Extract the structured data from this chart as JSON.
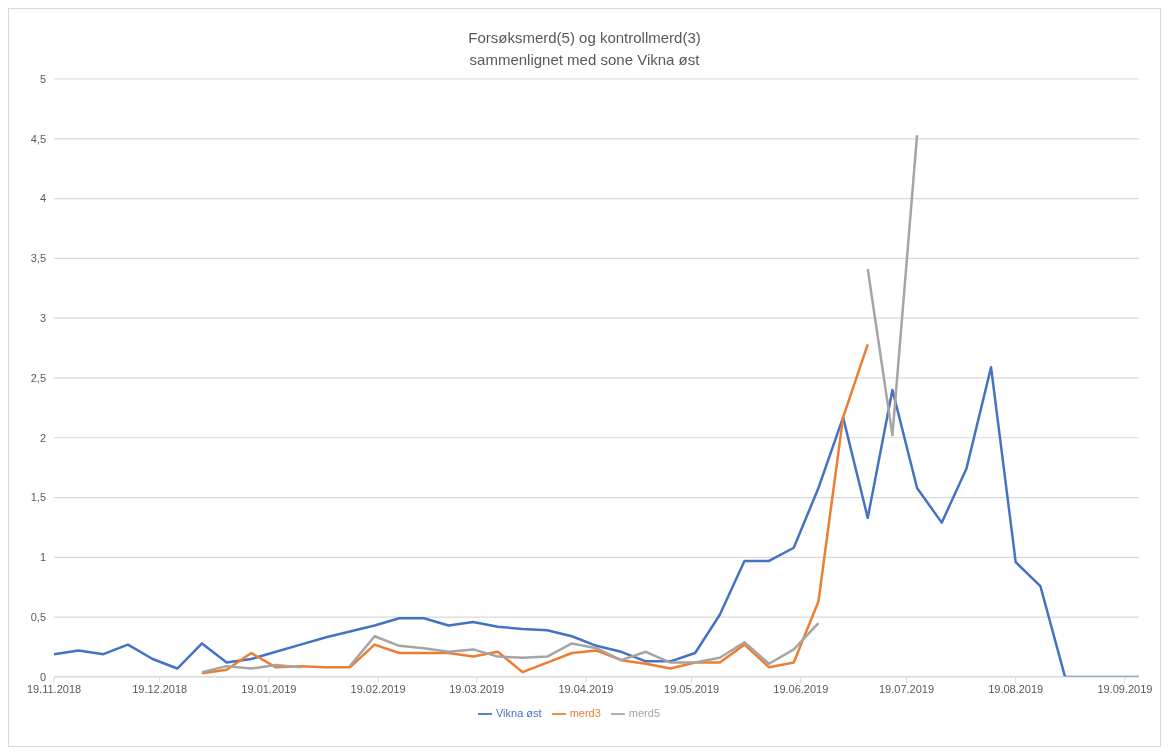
{
  "chart_data": {
    "type": "line",
    "title": "Forsøksmerd(5) og kontrollmerd(3)",
    "subtitle": "sammenlignet med sone Vikna øst",
    "x": [
      "2018-11-19",
      "2018-11-26",
      "2018-12-03",
      "2018-12-10",
      "2018-12-17",
      "2018-12-24",
      "2018-12-31",
      "2019-01-07",
      "2019-01-14",
      "2019-01-21",
      "2019-01-28",
      "2019-02-04",
      "2019-02-11",
      "2019-02-18",
      "2019-02-25",
      "2019-03-04",
      "2019-03-11",
      "2019-03-18",
      "2019-03-25",
      "2019-04-01",
      "2019-04-08",
      "2019-04-15",
      "2019-04-22",
      "2019-04-29",
      "2019-05-06",
      "2019-05-13",
      "2019-05-20",
      "2019-05-27",
      "2019-06-03",
      "2019-06-10",
      "2019-06-17",
      "2019-06-24",
      "2019-07-01",
      "2019-07-08",
      "2019-07-15",
      "2019-07-22",
      "2019-07-29",
      "2019-08-05",
      "2019-08-12",
      "2019-08-19",
      "2019-08-26",
      "2019-09-02",
      "2019-09-09",
      "2019-09-16",
      "2019-09-23"
    ],
    "series": [
      {
        "name": "Vikna øst",
        "color": "#4472c4",
        "values": [
          0.19,
          0.22,
          0.19,
          0.27,
          0.15,
          0.07,
          0.28,
          0.12,
          0.15,
          0.21,
          0.27,
          0.33,
          0.38,
          0.43,
          0.49,
          0.49,
          0.43,
          0.46,
          0.42,
          0.4,
          0.39,
          0.34,
          0.26,
          0.21,
          0.13,
          0.13,
          0.2,
          0.52,
          0.97,
          0.97,
          1.08,
          1.58,
          2.17,
          1.33,
          2.4,
          1.58,
          1.29,
          1.74,
          2.59,
          0.96,
          0.76,
          0,
          0,
          0,
          0
        ]
      },
      {
        "name": "merd3",
        "color": "#ed7d31",
        "values": [
          null,
          null,
          null,
          null,
          null,
          null,
          0.03,
          0.06,
          0.2,
          0.08,
          0.09,
          0.08,
          0.08,
          0.27,
          0.2,
          0.2,
          0.2,
          0.17,
          0.21,
          0.04,
          0.12,
          0.2,
          0.22,
          0.14,
          0.11,
          0.07,
          0.12,
          0.12,
          0.27,
          0.08,
          0.12,
          0.63,
          2.17,
          2.78,
          null,
          null,
          null,
          null,
          null,
          null,
          null,
          null,
          null,
          null,
          null
        ]
      },
      {
        "name": "merd5",
        "color": "#a5a5a5",
        "values": [
          null,
          null,
          null,
          null,
          null,
          null,
          0.04,
          0.09,
          0.07,
          0.1,
          0.08,
          null,
          0.09,
          0.34,
          0.26,
          0.24,
          0.21,
          0.23,
          0.17,
          0.16,
          0.17,
          0.28,
          0.24,
          0.14,
          0.21,
          0.12,
          0.12,
          0.16,
          0.29,
          0.11,
          0.23,
          0.45,
          null,
          3.41,
          2.02,
          4.53,
          null,
          null,
          null,
          null,
          null,
          null,
          null,
          null,
          null
        ]
      }
    ],
    "xlim": [
      "2018-11-19",
      "2019-09-23"
    ],
    "xticks": [
      {
        "value": "2018-11-19",
        "label": "19.11.2018"
      },
      {
        "value": "2018-12-19",
        "label": "19.12.2018"
      },
      {
        "value": "2019-01-19",
        "label": "19.01.2019"
      },
      {
        "value": "2019-02-19",
        "label": "19.02.2019"
      },
      {
        "value": "2019-03-19",
        "label": "19.03.2019"
      },
      {
        "value": "2019-04-19",
        "label": "19.04.2019"
      },
      {
        "value": "2019-05-19",
        "label": "19.05.2019"
      },
      {
        "value": "2019-06-19",
        "label": "19.06.2019"
      },
      {
        "value": "2019-07-19",
        "label": "19.07.2019"
      },
      {
        "value": "2019-08-19",
        "label": "19.08.2019"
      },
      {
        "value": "2019-09-19",
        "label": "19.09.2019"
      }
    ],
    "ylim": [
      0,
      5
    ],
    "yticks": [
      0,
      {
        "value": 0.5,
        "label": "0,5"
      },
      1,
      {
        "value": 1.5,
        "label": "1,5"
      },
      2,
      {
        "value": 2.5,
        "label": "2,5"
      },
      3,
      {
        "value": 3.5,
        "label": "3,5"
      },
      4,
      {
        "value": 4.5,
        "label": "4,5"
      },
      5
    ],
    "grid": "y",
    "legend": "bottom"
  }
}
